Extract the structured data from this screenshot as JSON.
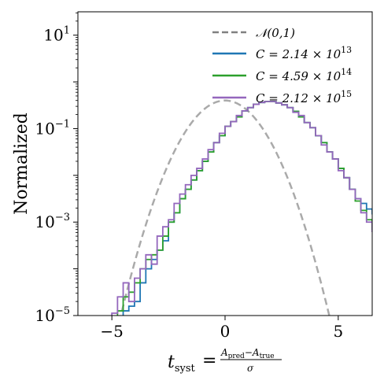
{
  "chart_data": {
    "type": "line",
    "xlabel": "t_syst = (A_pred − A_true) / σ",
    "xlabel_parts": {
      "lhs": "t",
      "lhs_sub": "syst",
      "equals": "=",
      "num_a": "A",
      "num_a_sub": "pred",
      "minus": "−",
      "num_b": "A",
      "num_b_sub": "true",
      "den": "σ"
    },
    "ylabel": "Normalized",
    "xlim": [
      -6.5,
      6.5
    ],
    "ylim_exp": [
      -5,
      1.5
    ],
    "yscale": "log",
    "xticks": [
      -5,
      0,
      5
    ],
    "xtick_labels": [
      "−5",
      "0",
      "5"
    ],
    "yticks_exp": [
      1,
      -1,
      -3,
      -5
    ],
    "ytick_base": "10",
    "ytick_exps": [
      "1",
      "−1",
      "−3",
      "−5"
    ],
    "legend_position": "top-right",
    "gaussian": {
      "name": "𝒩(0,1)",
      "color": "#aaaaaa",
      "legend_color": "#808080",
      "x_range": [
        -5,
        5
      ],
      "log10_max": -0.3991
    },
    "bin_edges_start": -6.0,
    "bin_width": 0.25,
    "series": [
      {
        "name_prefix": "C = 2.14 × 10",
        "name_exp": "13",
        "color": "#1f77b4",
        "log10_values": [
          -5.4,
          -5.5,
          -5.4,
          -5.3,
          -5.2,
          -5.1,
          -4.9,
          -4.8,
          -4.7,
          -4.3,
          -4.0,
          -3.8,
          -3.6,
          -3.4,
          -3.0,
          -2.8,
          -2.5,
          -2.3,
          -2.1,
          -1.9,
          -1.7,
          -1.5,
          -1.3,
          -1.15,
          -0.95,
          -0.85,
          -0.75,
          -0.62,
          -0.55,
          -0.48,
          -0.44,
          -0.42,
          -0.42,
          -0.45,
          -0.49,
          -0.55,
          -0.63,
          -0.75,
          -0.87,
          -0.98,
          -1.15,
          -1.3,
          -1.5,
          -1.65,
          -1.85,
          -2.05,
          -2.3,
          -2.5,
          -2.6,
          -2.72,
          -2.82,
          -2.9,
          -3.0,
          -3.1,
          -3.2,
          -3.35,
          -3.45,
          -3.5,
          -3.6,
          -3.65,
          -3.75,
          -3.75,
          -3.88,
          -4.05,
          -4.3
        ]
      },
      {
        "name_prefix": "C = 4.59 × 10",
        "name_exp": "14",
        "color": "#2ca02c",
        "log10_values": [
          -5.4,
          -5.5,
          -5.4,
          -5.3,
          -5.1,
          -4.9,
          -4.6,
          -4.5,
          -4.3,
          -4.0,
          -3.8,
          -3.7,
          -3.6,
          -3.3,
          -3.0,
          -2.8,
          -2.5,
          -2.3,
          -2.1,
          -1.9,
          -1.7,
          -1.5,
          -1.3,
          -1.15,
          -0.95,
          -0.85,
          -0.75,
          -0.62,
          -0.55,
          -0.48,
          -0.44,
          -0.42,
          -0.42,
          -0.45,
          -0.49,
          -0.55,
          -0.63,
          -0.75,
          -0.87,
          -0.98,
          -1.15,
          -1.3,
          -1.5,
          -1.65,
          -1.85,
          -2.05,
          -2.3,
          -2.55,
          -2.75,
          -2.95,
          -3.15,
          -3.4,
          -3.55,
          -3.6,
          -3.75,
          -3.85,
          -3.95,
          -4.0,
          -4.05,
          -4.1,
          -4.15,
          -4.2,
          -4.3,
          -4.5,
          -4.6
        ]
      },
      {
        "name_prefix": "C = 2.12 × 10",
        "name_exp": "15",
        "color": "#9467bd",
        "log10_values": [
          -5.4,
          -5.5,
          -5.4,
          -5.2,
          -4.95,
          -4.6,
          -4.3,
          -4.7,
          -4.2,
          -4.0,
          -3.7,
          -3.9,
          -3.3,
          -3.1,
          -2.95,
          -2.6,
          -2.4,
          -2.2,
          -2.0,
          -1.85,
          -1.65,
          -1.45,
          -1.3,
          -1.1,
          -0.95,
          -0.85,
          -0.72,
          -0.62,
          -0.55,
          -0.48,
          -0.44,
          -0.42,
          -0.42,
          -0.45,
          -0.49,
          -0.55,
          -0.65,
          -0.72,
          -0.87,
          -0.98,
          -1.15,
          -1.35,
          -1.5,
          -1.65,
          -1.9,
          -2.05,
          -2.3,
          -2.5,
          -2.8,
          -3.0,
          -3.2,
          -3.4,
          -3.65,
          -3.7,
          -3.8,
          -4.1,
          -4.2,
          -4.8,
          -4.3,
          -5.0,
          -4.5,
          -4.9,
          -5.1,
          -5.3,
          -5.5
        ]
      }
    ]
  }
}
